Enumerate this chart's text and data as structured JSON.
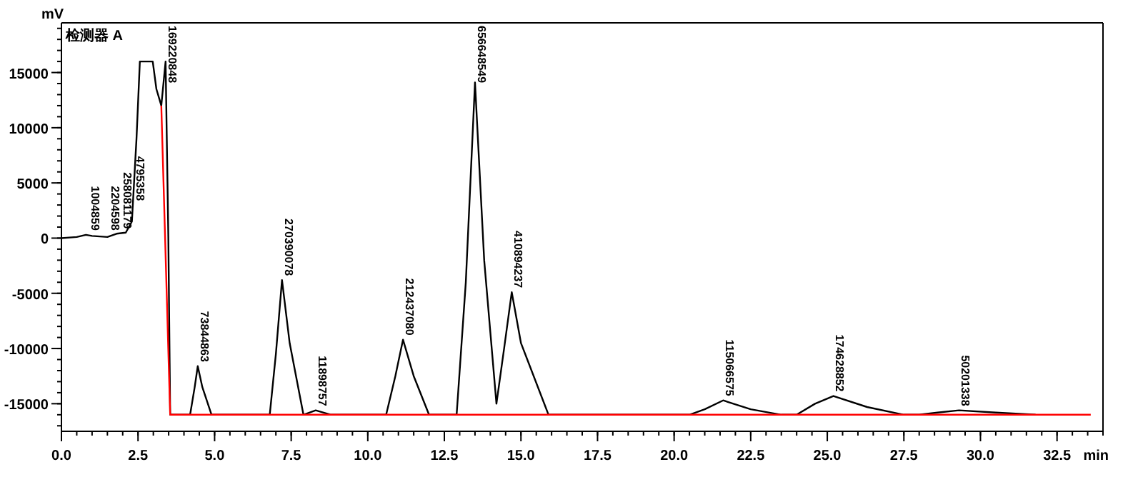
{
  "chart_data": {
    "type": "line",
    "ylabel": "mV",
    "xlabel": "min",
    "xlim": [
      0,
      34
    ],
    "ylim": [
      -17500,
      19500
    ],
    "xticks": [
      {
        "value": 0,
        "label": "0.0"
      },
      {
        "value": 2.5,
        "label": "2.5"
      },
      {
        "value": 5,
        "label": "5.0"
      },
      {
        "value": 7.5,
        "label": "7.5"
      },
      {
        "value": 10,
        "label": "10.0"
      },
      {
        "value": 12.5,
        "label": "12.5"
      },
      {
        "value": 15,
        "label": "15.0"
      },
      {
        "value": 17.5,
        "label": "17.5"
      },
      {
        "value": 20,
        "label": "20.0"
      },
      {
        "value": 22.5,
        "label": "22.5"
      },
      {
        "value": 25,
        "label": "25.0"
      },
      {
        "value": 27.5,
        "label": "27.5"
      },
      {
        "value": 30,
        "label": "30.0"
      },
      {
        "value": 32.5,
        "label": "32.5"
      }
    ],
    "yticks": [
      -15000,
      -10000,
      -5000,
      0,
      5000,
      10000,
      15000
    ],
    "grid": false,
    "marker": "none",
    "series": [
      {
        "color": "#000000",
        "x": [
          0,
          0.5,
          0.8,
          1.0,
          1.5,
          1.8,
          2.1,
          2.3,
          2.45,
          2.56,
          2.98,
          3.1,
          3.26,
          3.4,
          3.49,
          3.55,
          4.2,
          4.35,
          4.45,
          4.6,
          4.9,
          6.8,
          7.0,
          7.2,
          7.45,
          7.9,
          8.3,
          8.8,
          10.6,
          10.9,
          11.15,
          11.5,
          12.0,
          12.9,
          13.2,
          13.5,
          13.8,
          14.2,
          14.45,
          14.7,
          15.0,
          15.9,
          20.5,
          21.0,
          21.6,
          22.5,
          23.5,
          24.0,
          24.6,
          25.2,
          26.3,
          27.5,
          28.0,
          28.6,
          29.3,
          30.5,
          31.8
        ],
        "values": [
          0,
          100,
          300,
          200,
          100,
          400,
          500,
          1500,
          9000,
          16000,
          16000,
          13500,
          12000,
          16000,
          0,
          -16000,
          -16000,
          -13500,
          -11600,
          -13500,
          -16000,
          -16000,
          -10500,
          -3800,
          -9500,
          -16000,
          -15600,
          -16000,
          -16000,
          -12500,
          -9200,
          -12500,
          -16000,
          -16000,
          -4000,
          14100,
          -2000,
          -15000,
          -10000,
          -4900,
          -9500,
          -16000,
          -16000,
          -15500,
          -14700,
          -15500,
          -16000,
          -16000,
          -15000,
          -14300,
          -15300,
          -16000,
          -16000,
          -15800,
          -15600,
          -15800,
          -16000
        ]
      },
      {
        "color": "#ff0000",
        "x": [
          3.26,
          3.55,
          33.6
        ],
        "values": [
          12000,
          -16000,
          -16000
        ]
      }
    ],
    "annotations": [
      "检测器 A",
      {
        "text": "1004859",
        "x": 0.9,
        "y": 300
      },
      {
        "text": "2204598",
        "x": 1.55,
        "y": 300
      },
      {
        "text": "258081179",
        "x": 1.95,
        "y": 450
      },
      {
        "text": "4795358",
        "x": 2.35,
        "y": 3000
      },
      {
        "text": "169220848",
        "x": 3.4,
        "y": 16000
      },
      {
        "text": "73844863",
        "x": 4.45,
        "y": -11600
      },
      {
        "text": "270390078",
        "x": 7.2,
        "y": -3800
      },
      {
        "text": "11898757",
        "x": 8.3,
        "y": -15600
      },
      {
        "text": "212437080",
        "x": 11.15,
        "y": -9200
      },
      {
        "text": "656648549",
        "x": 13.5,
        "y": 14100
      },
      {
        "text": "410894237",
        "x": 14.7,
        "y": -4900
      },
      {
        "text": "115066575",
        "x": 21.6,
        "y": -14700
      },
      {
        "text": "174628852",
        "x": 25.2,
        "y": -14300
      },
      {
        "text": "50201338",
        "x": 29.3,
        "y": -15600
      }
    ]
  }
}
